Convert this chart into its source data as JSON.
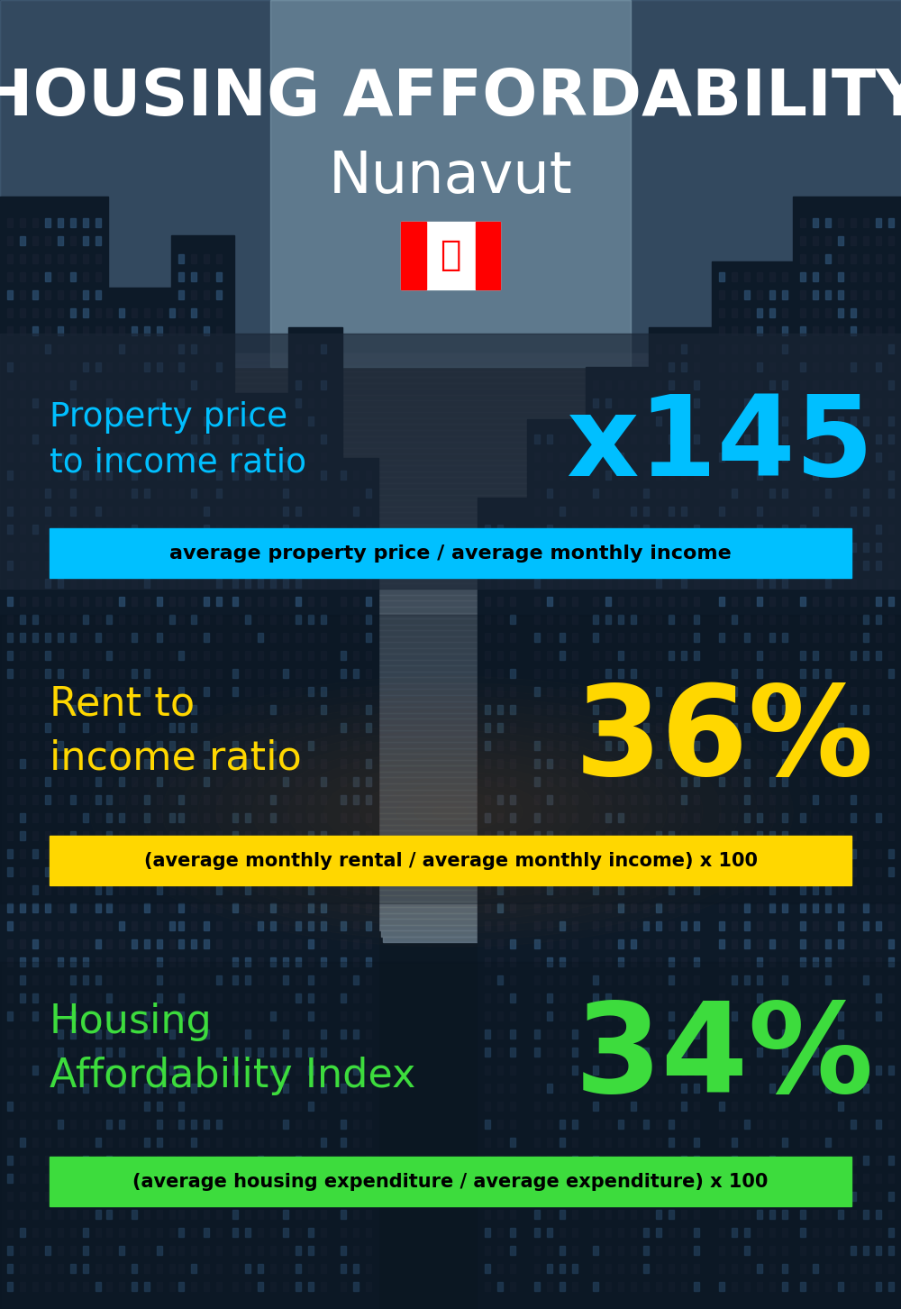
{
  "title_line1": "HOUSING AFFORDABILITY",
  "title_line2": "Nunavut",
  "bg_color": "#0a1520",
  "section1_label": "Property price\nto income ratio",
  "section1_value": "x145",
  "section1_label_color": "#00bfff",
  "section1_value_color": "#00bfff",
  "section1_bar_text": "average property price / average monthly income",
  "section1_bar_color": "#00c0ff",
  "section2_label": "Rent to\nincome ratio",
  "section2_value": "36%",
  "section2_label_color": "#ffd700",
  "section2_value_color": "#ffd700",
  "section2_bar_text": "(average monthly rental / average monthly income) x 100",
  "section2_bar_color": "#ffd700",
  "section3_label": "Housing\nAffordability Index",
  "section3_value": "34%",
  "section3_label_color": "#3ddc3d",
  "section3_value_color": "#3ddc3d",
  "section3_bar_text": "(average housing expenditure / average expenditure) x 100",
  "section3_bar_color": "#3ddc3d",
  "title_color": "#ffffff",
  "bar_text_color": "#000000",
  "fig_width": 10.0,
  "fig_height": 14.52,
  "dpi": 100
}
